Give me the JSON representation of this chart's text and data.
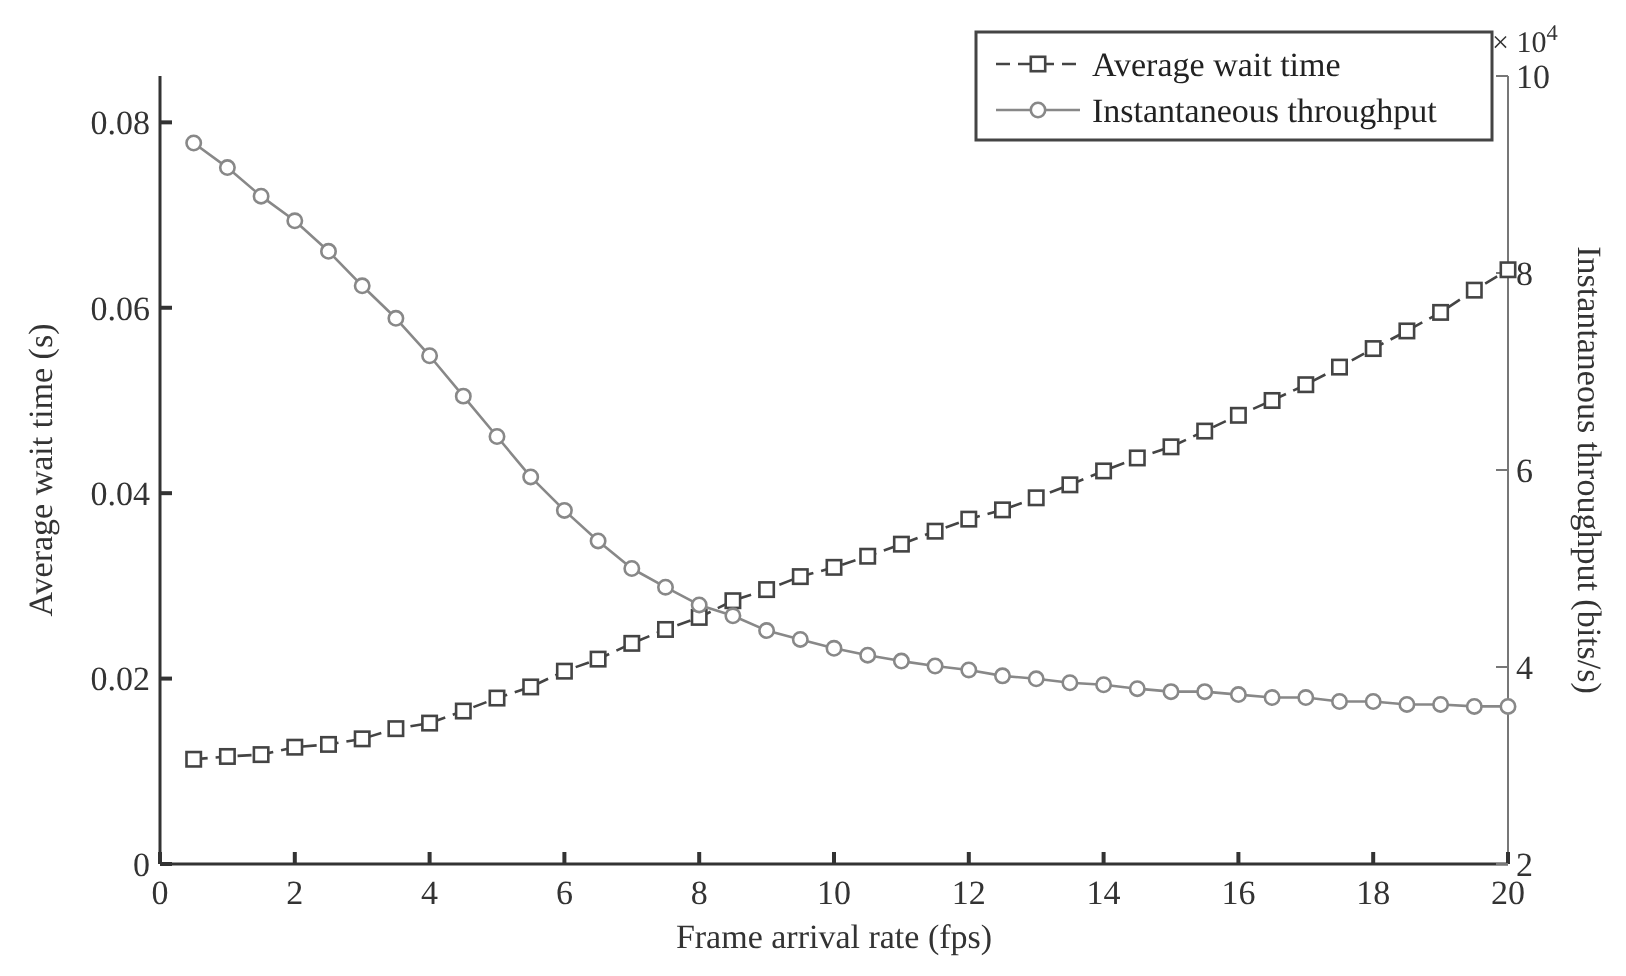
{
  "chart_data": {
    "type": "line",
    "xlabel": "Frame arrival rate (fps)",
    "ylabel": "Average wait time (s)",
    "y2label": "Instantaneous throughput (bits/s)",
    "x": [
      0.5,
      1,
      1.5,
      2,
      2.5,
      3,
      3.5,
      4,
      4.5,
      5,
      5.5,
      6,
      6.5,
      7,
      7.5,
      8,
      8.5,
      9,
      9.5,
      10,
      10.5,
      11,
      11.5,
      12,
      12.5,
      13,
      13.5,
      14,
      14.5,
      15,
      15.5,
      16,
      16.5,
      17,
      17.5,
      18,
      18.5,
      19,
      19.5,
      20
    ],
    "xlim": [
      0,
      20
    ],
    "xticks": [
      0,
      2,
      4,
      6,
      8,
      10,
      12,
      14,
      16,
      18,
      20
    ],
    "ylim": [
      0,
      0.085
    ],
    "yticks": [
      0,
      0.02,
      0.04,
      0.06,
      0.08
    ],
    "y2lim": [
      2,
      10
    ],
    "y2ticks": [
      2,
      4,
      6,
      8,
      10
    ],
    "annotations": [
      "× 10$^{4}$"
    ],
    "legend": "top right",
    "grid": false,
    "series": [
      {
        "name": "Average wait time",
        "color": "#444444",
        "marker": "square",
        "line_style": "dashed",
        "values": [
          0.0113,
          0.0116,
          0.0118,
          0.0126,
          0.0129,
          0.0135,
          0.0146,
          0.0152,
          0.0165,
          0.0179,
          0.0191,
          0.0208,
          0.0221,
          0.0238,
          0.0253,
          0.0266,
          0.0284,
          0.0296,
          0.031,
          0.032,
          0.0332,
          0.0345,
          0.0359,
          0.0372,
          0.0382,
          0.0395,
          0.0409,
          0.0424,
          0.0438,
          0.045,
          0.0467,
          0.0484,
          0.05,
          0.0517,
          0.0536,
          0.0556,
          0.0575,
          0.0595,
          0.0619,
          0.0641
        ]
      },
      {
        "name": "Instantaneous throughput",
        "color": "#888888",
        "marker": "circle",
        "line_style": "solid",
        "axis": "y2",
        "values": [
          9.32,
          9.07,
          8.78,
          8.53,
          8.22,
          7.87,
          7.54,
          7.16,
          6.75,
          6.34,
          5.93,
          5.59,
          5.28,
          5.0,
          4.81,
          4.63,
          4.52,
          4.37,
          4.28,
          4.19,
          4.12,
          4.06,
          4.01,
          3.97,
          3.91,
          3.88,
          3.84,
          3.82,
          3.78,
          3.75,
          3.75,
          3.72,
          3.69,
          3.69,
          3.65,
          3.65,
          3.62,
          3.62,
          3.6,
          3.6
        ]
      }
    ]
  }
}
